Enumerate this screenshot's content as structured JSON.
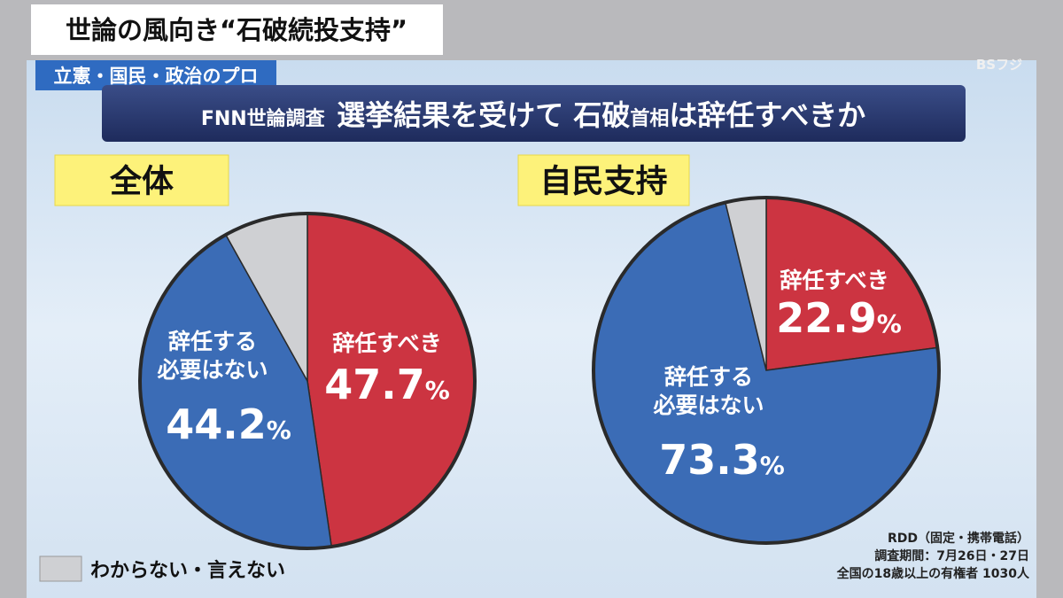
{
  "header": {
    "title": "世論の風向き“石破続投支持”",
    "tag": "立憲・国民・政治のプロ",
    "logo": "BSフジ"
  },
  "banner": [
    "FNN世論調査",
    "選挙結果を受けて 石破",
    "首相",
    "は辞任すべきか"
  ],
  "chart_data": [
    {
      "type": "pie",
      "title": "全体",
      "categories": [
        "辞任すべき",
        "辞任する\n必要はない",
        "わからない・言えない"
      ],
      "values": [
        47.7,
        44.2,
        8.1
      ],
      "value_labels": [
        "47.7%",
        "44.2%",
        null
      ],
      "colors": [
        "#cc3441",
        "#3b6cb6",
        "#cfd0d3"
      ]
    },
    {
      "type": "pie",
      "title": "自民支持",
      "categories": [
        "辞任すべき",
        "辞任する\n必要はない",
        "わからない・言えない"
      ],
      "values": [
        22.9,
        73.3,
        3.8
      ],
      "value_labels": [
        "22.9%",
        "73.3%",
        null
      ],
      "colors": [
        "#cc3441",
        "#3b6cb6",
        "#cfd0d3"
      ]
    }
  ],
  "footnote": [
    "RDD（固定・携帯電話）",
    "調査期間：7月26日・27日",
    "全国の18歳以上の有権者 1030人"
  ]
}
